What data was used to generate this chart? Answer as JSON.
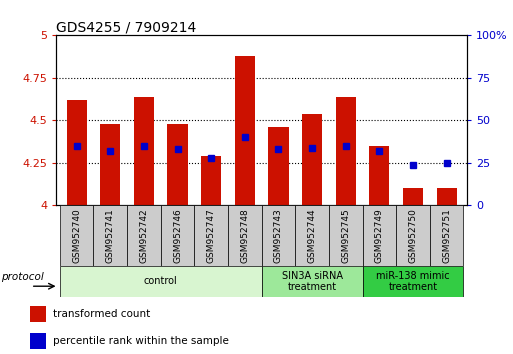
{
  "title": "GDS4255 / 7909214",
  "samples": [
    "GSM952740",
    "GSM952741",
    "GSM952742",
    "GSM952746",
    "GSM952747",
    "GSM952748",
    "GSM952743",
    "GSM952744",
    "GSM952745",
    "GSM952749",
    "GSM952750",
    "GSM952751"
  ],
  "red_values": [
    4.62,
    4.48,
    4.64,
    4.48,
    4.29,
    4.88,
    4.46,
    4.54,
    4.64,
    4.35,
    4.1,
    4.1
  ],
  "blue_values": [
    35,
    32,
    35,
    33,
    28,
    40,
    33,
    34,
    35,
    32,
    24,
    25
  ],
  "ylim_left": [
    4.0,
    5.0
  ],
  "ylim_right": [
    0,
    100
  ],
  "yticks_left": [
    4.0,
    4.25,
    4.5,
    4.75,
    5.0
  ],
  "yticks_right": [
    0,
    25,
    50,
    75,
    100
  ],
  "ytick_labels_left": [
    "4",
    "4.25",
    "4.5",
    "4.75",
    "5"
  ],
  "ytick_labels_right": [
    "0",
    "25",
    "50",
    "75",
    "100%"
  ],
  "bar_color": "#cc1100",
  "dot_color": "#0000cc",
  "background_color": "#ffffff",
  "plot_bg_color": "#ffffff",
  "grid_color": "#000000",
  "title_fontsize": 10,
  "groups": [
    {
      "label": "control",
      "start": 0,
      "end": 5,
      "color": "#d8f5d0"
    },
    {
      "label": "SIN3A siRNA\ntreatment",
      "start": 6,
      "end": 8,
      "color": "#9de89a"
    },
    {
      "label": "miR-138 mimic\ntreatment",
      "start": 9,
      "end": 11,
      "color": "#33cc44"
    }
  ],
  "protocol_label": "protocol",
  "legend_items": [
    {
      "label": "transformed count",
      "color": "#cc1100"
    },
    {
      "label": "percentile rank within the sample",
      "color": "#0000cc"
    }
  ]
}
